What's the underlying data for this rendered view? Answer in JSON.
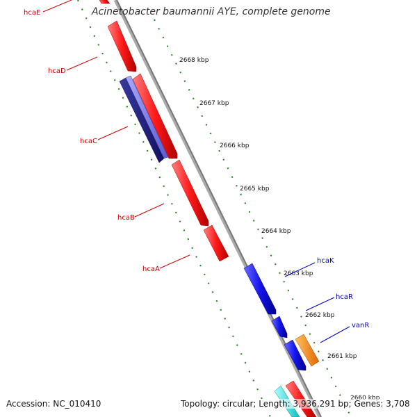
{
  "title": "Acinetobacter baumannii AYE, complete genome",
  "footer": {
    "accession": "Accession: NC_010410",
    "summary": "Topology: circular; Length: 3,936,291 bp; Genes: 3,708"
  },
  "colors": {
    "backbone": "#888888",
    "tick_dots": "#1a7f1a",
    "forward_gene": "#ff2020",
    "reverse_gene": "#1a1aee",
    "dark_gene": "#222288",
    "orange_gene": "#ff8800",
    "cyan_gene": "#22e5e5",
    "forward_label": "#cc0000",
    "reverse_label": "#0000bb"
  },
  "scale_labels": [
    "2668 kbp",
    "2667 kbp",
    "2666 kbp",
    "2665 kbp",
    "2664 kbp",
    "2663 kbp",
    "2662 kbp",
    "2661 kbp",
    "2660 kbp"
  ],
  "forward_genes": [
    "hcaE",
    "hcaD",
    "hcaC",
    "hcaB",
    "hcaA"
  ],
  "reverse_genes": [
    "hcaK",
    "hcaR",
    "vanR"
  ]
}
